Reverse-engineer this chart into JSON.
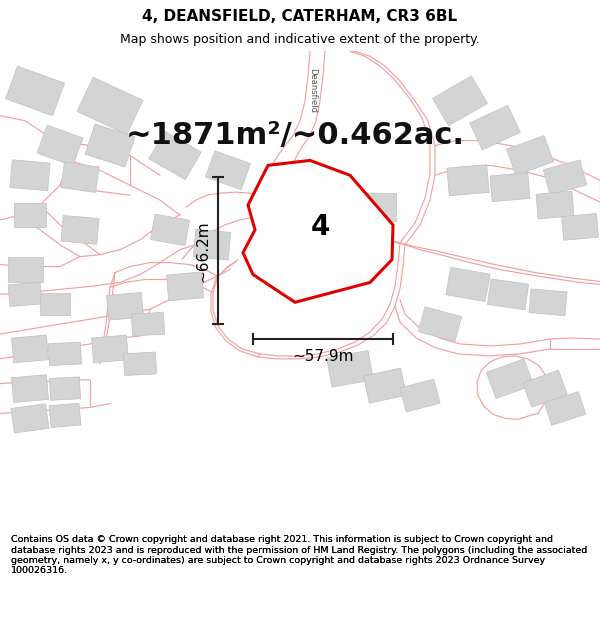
{
  "title": "4, DEANSFIELD, CATERHAM, CR3 6BL",
  "subtitle": "Map shows position and indicative extent of the property.",
  "area_text": "~1871m²/~0.462ac.",
  "dim_height": "~66.2m",
  "dim_width": "~57.9m",
  "label": "4",
  "footer": "Contains OS data © Crown copyright and database right 2021. This information is subject to Crown copyright and database rights 2023 and is reproduced with the permission of HM Land Registry. The polygons (including the associated geometry, namely x, y co-ordinates) are subject to Crown copyright and database rights 2023 Ordnance Survey 100026316.",
  "bg_color": "#ffffff",
  "title_bg": "#f7f7f7",
  "map_bg": "#ffffff",
  "road_color": "#f2a0a0",
  "road_fill": "#fce8e8",
  "building_color": "#d4d4d4",
  "building_edge": "#c0c0c0",
  "plot_color": "#e00000",
  "plot_fill": "#ffffff",
  "title_fontsize": 11,
  "subtitle_fontsize": 9,
  "area_fontsize": 22,
  "label_fontsize": 20,
  "dim_fontsize": 11,
  "footer_fontsize": 6.8,
  "road_label_fontsize": 6
}
